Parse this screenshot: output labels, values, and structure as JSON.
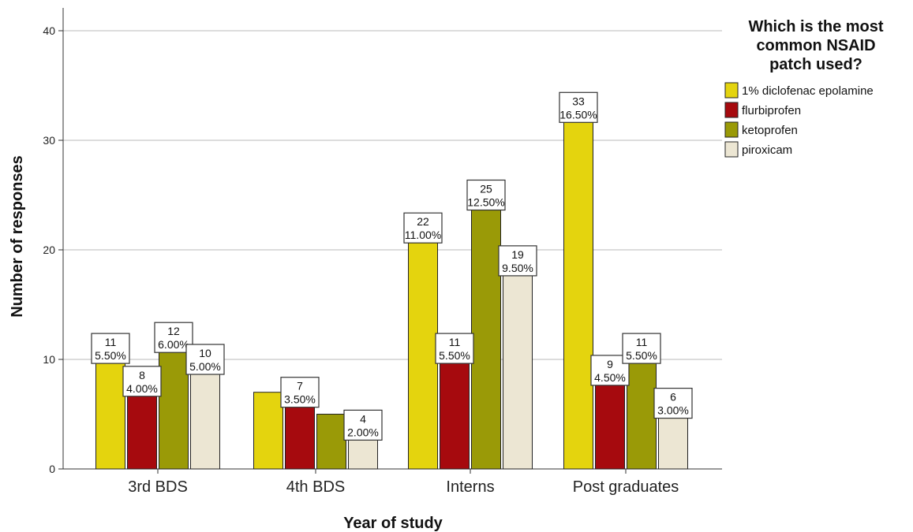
{
  "chart_data": {
    "type": "bar",
    "categories": [
      "3rd BDS",
      "4th BDS",
      "Interns",
      "Post graduates"
    ],
    "series": [
      {
        "name": "1% diclofenac epolamine",
        "values": [
          11,
          7,
          22,
          33
        ],
        "percents": [
          "5.50%",
          "",
          "11.00%",
          "16.50%"
        ],
        "color": "#e4d40e"
      },
      {
        "name": "flurbiprofen",
        "values": [
          8,
          7,
          11,
          9
        ],
        "percents": [
          "4.00%",
          "3.50%",
          "5.50%",
          "4.50%"
        ],
        "color": "#a60a0e"
      },
      {
        "name": "ketoprofen",
        "values": [
          12,
          5,
          25,
          11
        ],
        "percents": [
          "6.00%",
          "",
          "12.50%",
          "5.50%"
        ],
        "color": "#9a9a07"
      },
      {
        "name": "piroxicam",
        "values": [
          10,
          4,
          19,
          6
        ],
        "percents": [
          "5.00%",
          "2.00%",
          "9.50%",
          "3.00%"
        ],
        "color": "#ece6d3"
      }
    ],
    "labeled": [
      [
        true,
        false,
        true,
        true
      ],
      [
        true,
        true,
        true,
        true
      ],
      [
        true,
        false,
        true,
        true
      ],
      [
        true,
        true,
        true,
        true
      ]
    ],
    "title": "",
    "xlabel": "Year of study",
    "ylabel": "Number of responses",
    "ylim": [
      0,
      42
    ],
    "yticks": [
      0,
      10,
      20,
      30,
      40
    ],
    "grid": true,
    "legend": {
      "title_lines": [
        "Which is the most",
        "common NSAID",
        "patch used?"
      ],
      "position": "top-right"
    }
  }
}
